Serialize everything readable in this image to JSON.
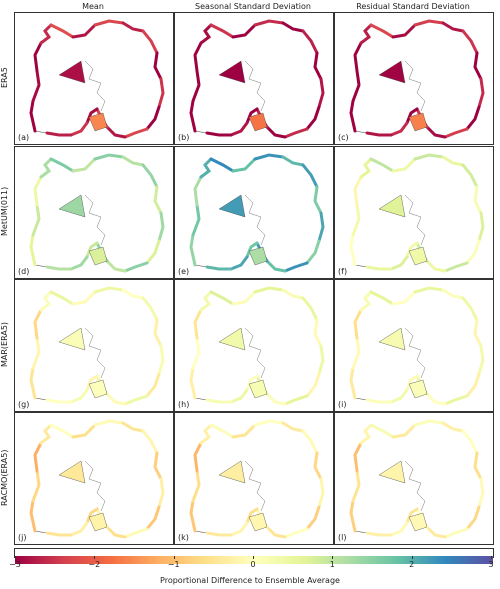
{
  "chart_data": {
    "type": "heatmap",
    "columns": [
      "Mean",
      "Seasonal Standard Deviation",
      "Residual Standard Deviation"
    ],
    "rows": [
      "ERA5",
      "MetUM(011)",
      "MAR(ERA5)",
      "RACMO(ERA5)"
    ],
    "panel_labels": [
      "(a)",
      "(b)",
      "(c)",
      "(d)",
      "(e)",
      "(f)",
      "(g)",
      "(h)",
      "(i)",
      "(j)",
      "(k)",
      "(l)"
    ],
    "colorbar": {
      "label": "Proportional Difference to Ensemble Average",
      "range": [
        -3,
        3
      ],
      "ticks": [
        "−3",
        "−2",
        "−1",
        "0",
        "1",
        "2",
        "3"
      ],
      "tick_values": [
        -3,
        -2,
        -1,
        0,
        1,
        2,
        3
      ],
      "colormap": "Spectral",
      "colors": [
        "#9e0142",
        "#d53e4f",
        "#f46d43",
        "#fdae61",
        "#fee08b",
        "#ffffbf",
        "#e6f598",
        "#abdda4",
        "#66c2a5",
        "#3288bd",
        "#5e4fa2"
      ]
    },
    "panel_values": [
      [
        -2.6,
        -2.9,
        -2.7
      ],
      [
        1.2,
        2.0,
        0.6
      ],
      [
        0.1,
        0.3,
        0.2
      ],
      [
        -0.4,
        -0.3,
        -0.2
      ]
    ]
  }
}
